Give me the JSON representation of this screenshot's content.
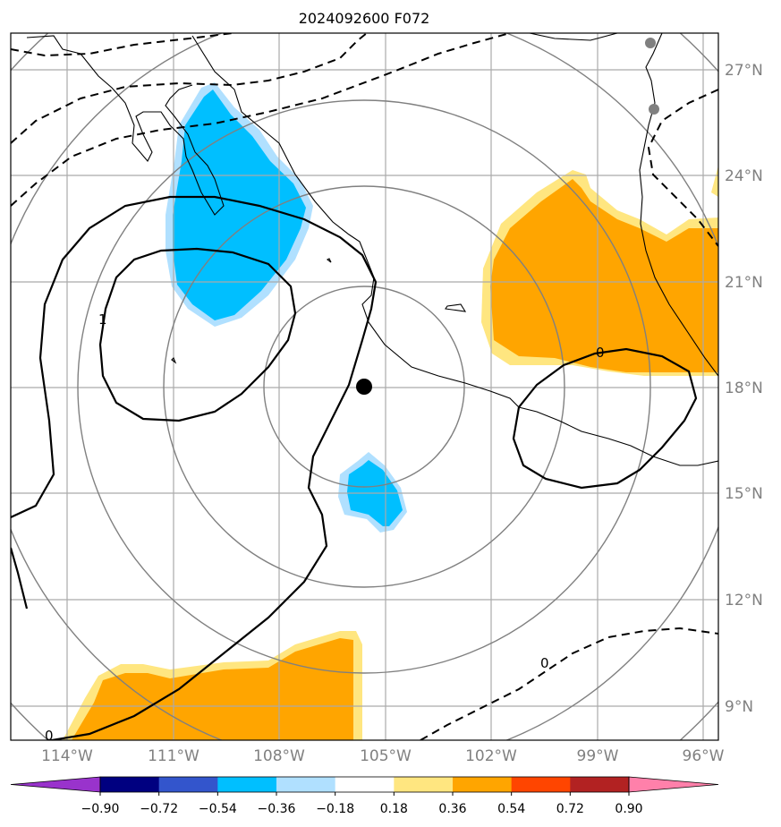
{
  "title": "2024092600 F072",
  "lat_labels": [
    "27°N",
    "24°N",
    "21°N",
    "18°N",
    "15°N",
    "12°N",
    "9°N"
  ],
  "lon_labels": [
    "114°W",
    "111°W",
    "108°W",
    "105°W",
    "102°W",
    "99°W",
    "96°W"
  ],
  "contour_labels": [
    "1",
    "0",
    "0",
    "0"
  ],
  "colorbar": {
    "labels": [
      "−0.90",
      "−0.72",
      "−0.54",
      "−0.36",
      "−0.18",
      "0.18",
      "0.36",
      "0.54",
      "0.72",
      "0.90"
    ],
    "colors": [
      "#9933cc",
      "#000080",
      "#3355cc",
      "#00bfff",
      "#b0e0ff",
      "#ffffff",
      "#ffe680",
      "#ffa500",
      "#ff4500",
      "#b22222",
      "#ff80aa"
    ]
  },
  "map": {
    "extent": {
      "lon_min": -115.6,
      "lon_max": -95.6,
      "lat_min": 8.0,
      "lat_max": 28.0
    },
    "center": {
      "lon": -105.6,
      "lat": 18.0
    },
    "range_rings": 5,
    "colors": {
      "orange": "#ffa500",
      "light_yellow": "#ffe680",
      "blue": "#00bfff",
      "light_blue": "#b0e0ff",
      "grid": "#aaaaaa",
      "ring": "#808080"
    }
  }
}
